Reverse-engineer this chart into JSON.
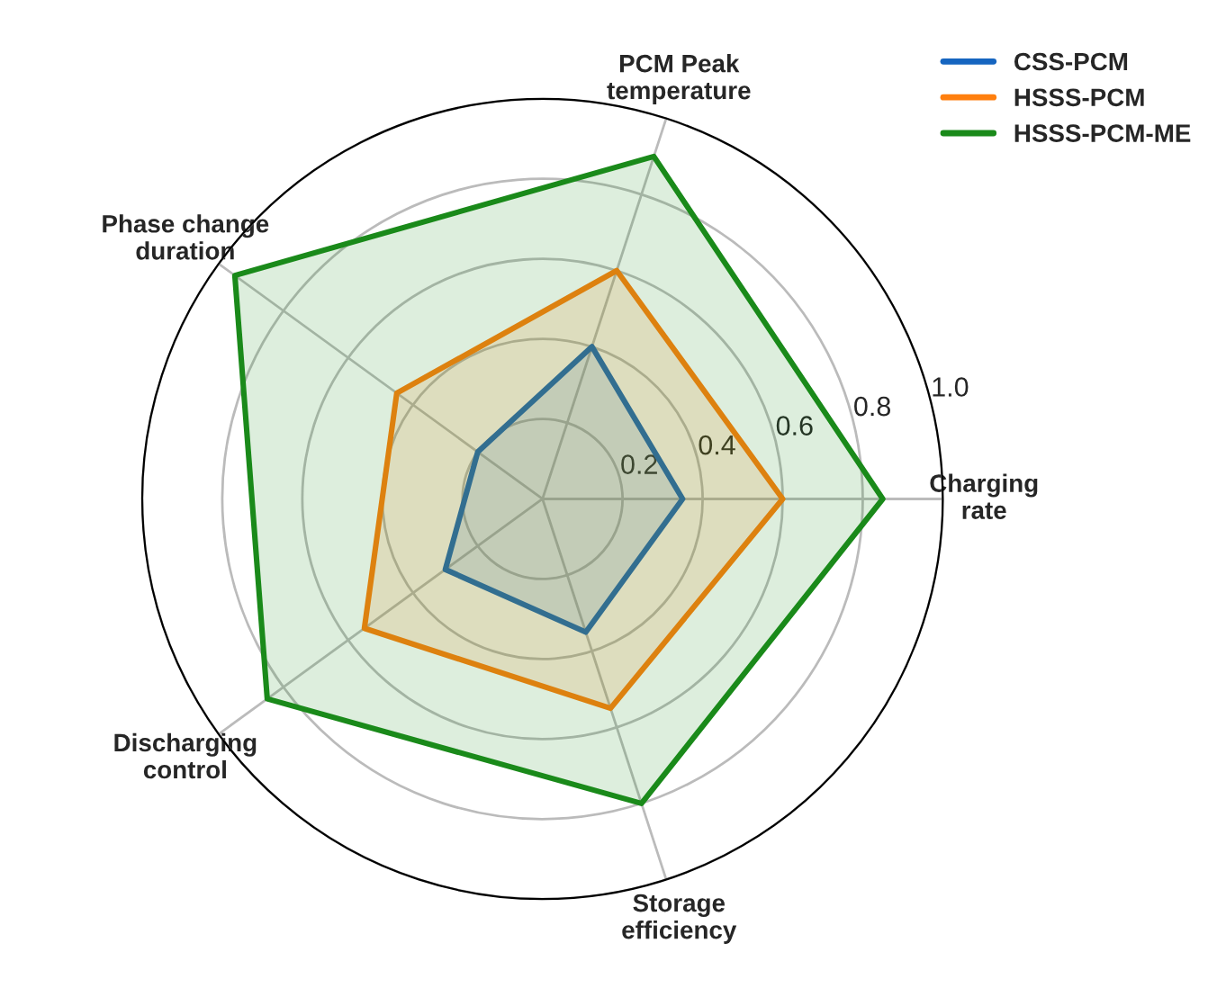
{
  "chart_data": {
    "type": "radar",
    "categories": [
      "PCM Peak\ntemperature",
      "Charging\nrate",
      "Storage\nefficiency",
      "Discharging\ncontrol",
      "Phase change\nduration"
    ],
    "series": [
      {
        "name": "CSS-PCM",
        "color": "#1565c0",
        "values": [
          0.4,
          0.35,
          0.35,
          0.3,
          0.2
        ]
      },
      {
        "name": "HSSS-PCM",
        "color": "#ff7f0e",
        "values": [
          0.6,
          0.6,
          0.55,
          0.55,
          0.45
        ]
      },
      {
        "name": "HSSS-PCM-ME",
        "color": "#1a8a1a",
        "values": [
          0.9,
          0.85,
          0.8,
          0.85,
          0.95
        ]
      }
    ],
    "ylim": [
      0,
      1.0
    ],
    "yticks": [
      {
        "value": 0.2,
        "label": "0.2"
      },
      {
        "value": 0.4,
        "label": "0.4"
      },
      {
        "value": 0.6,
        "label": "0.6"
      },
      {
        "value": 0.8,
        "label": "0.8"
      },
      {
        "value": 1.0,
        "label": "1.0"
      }
    ],
    "grid": true,
    "legend": "top right"
  }
}
